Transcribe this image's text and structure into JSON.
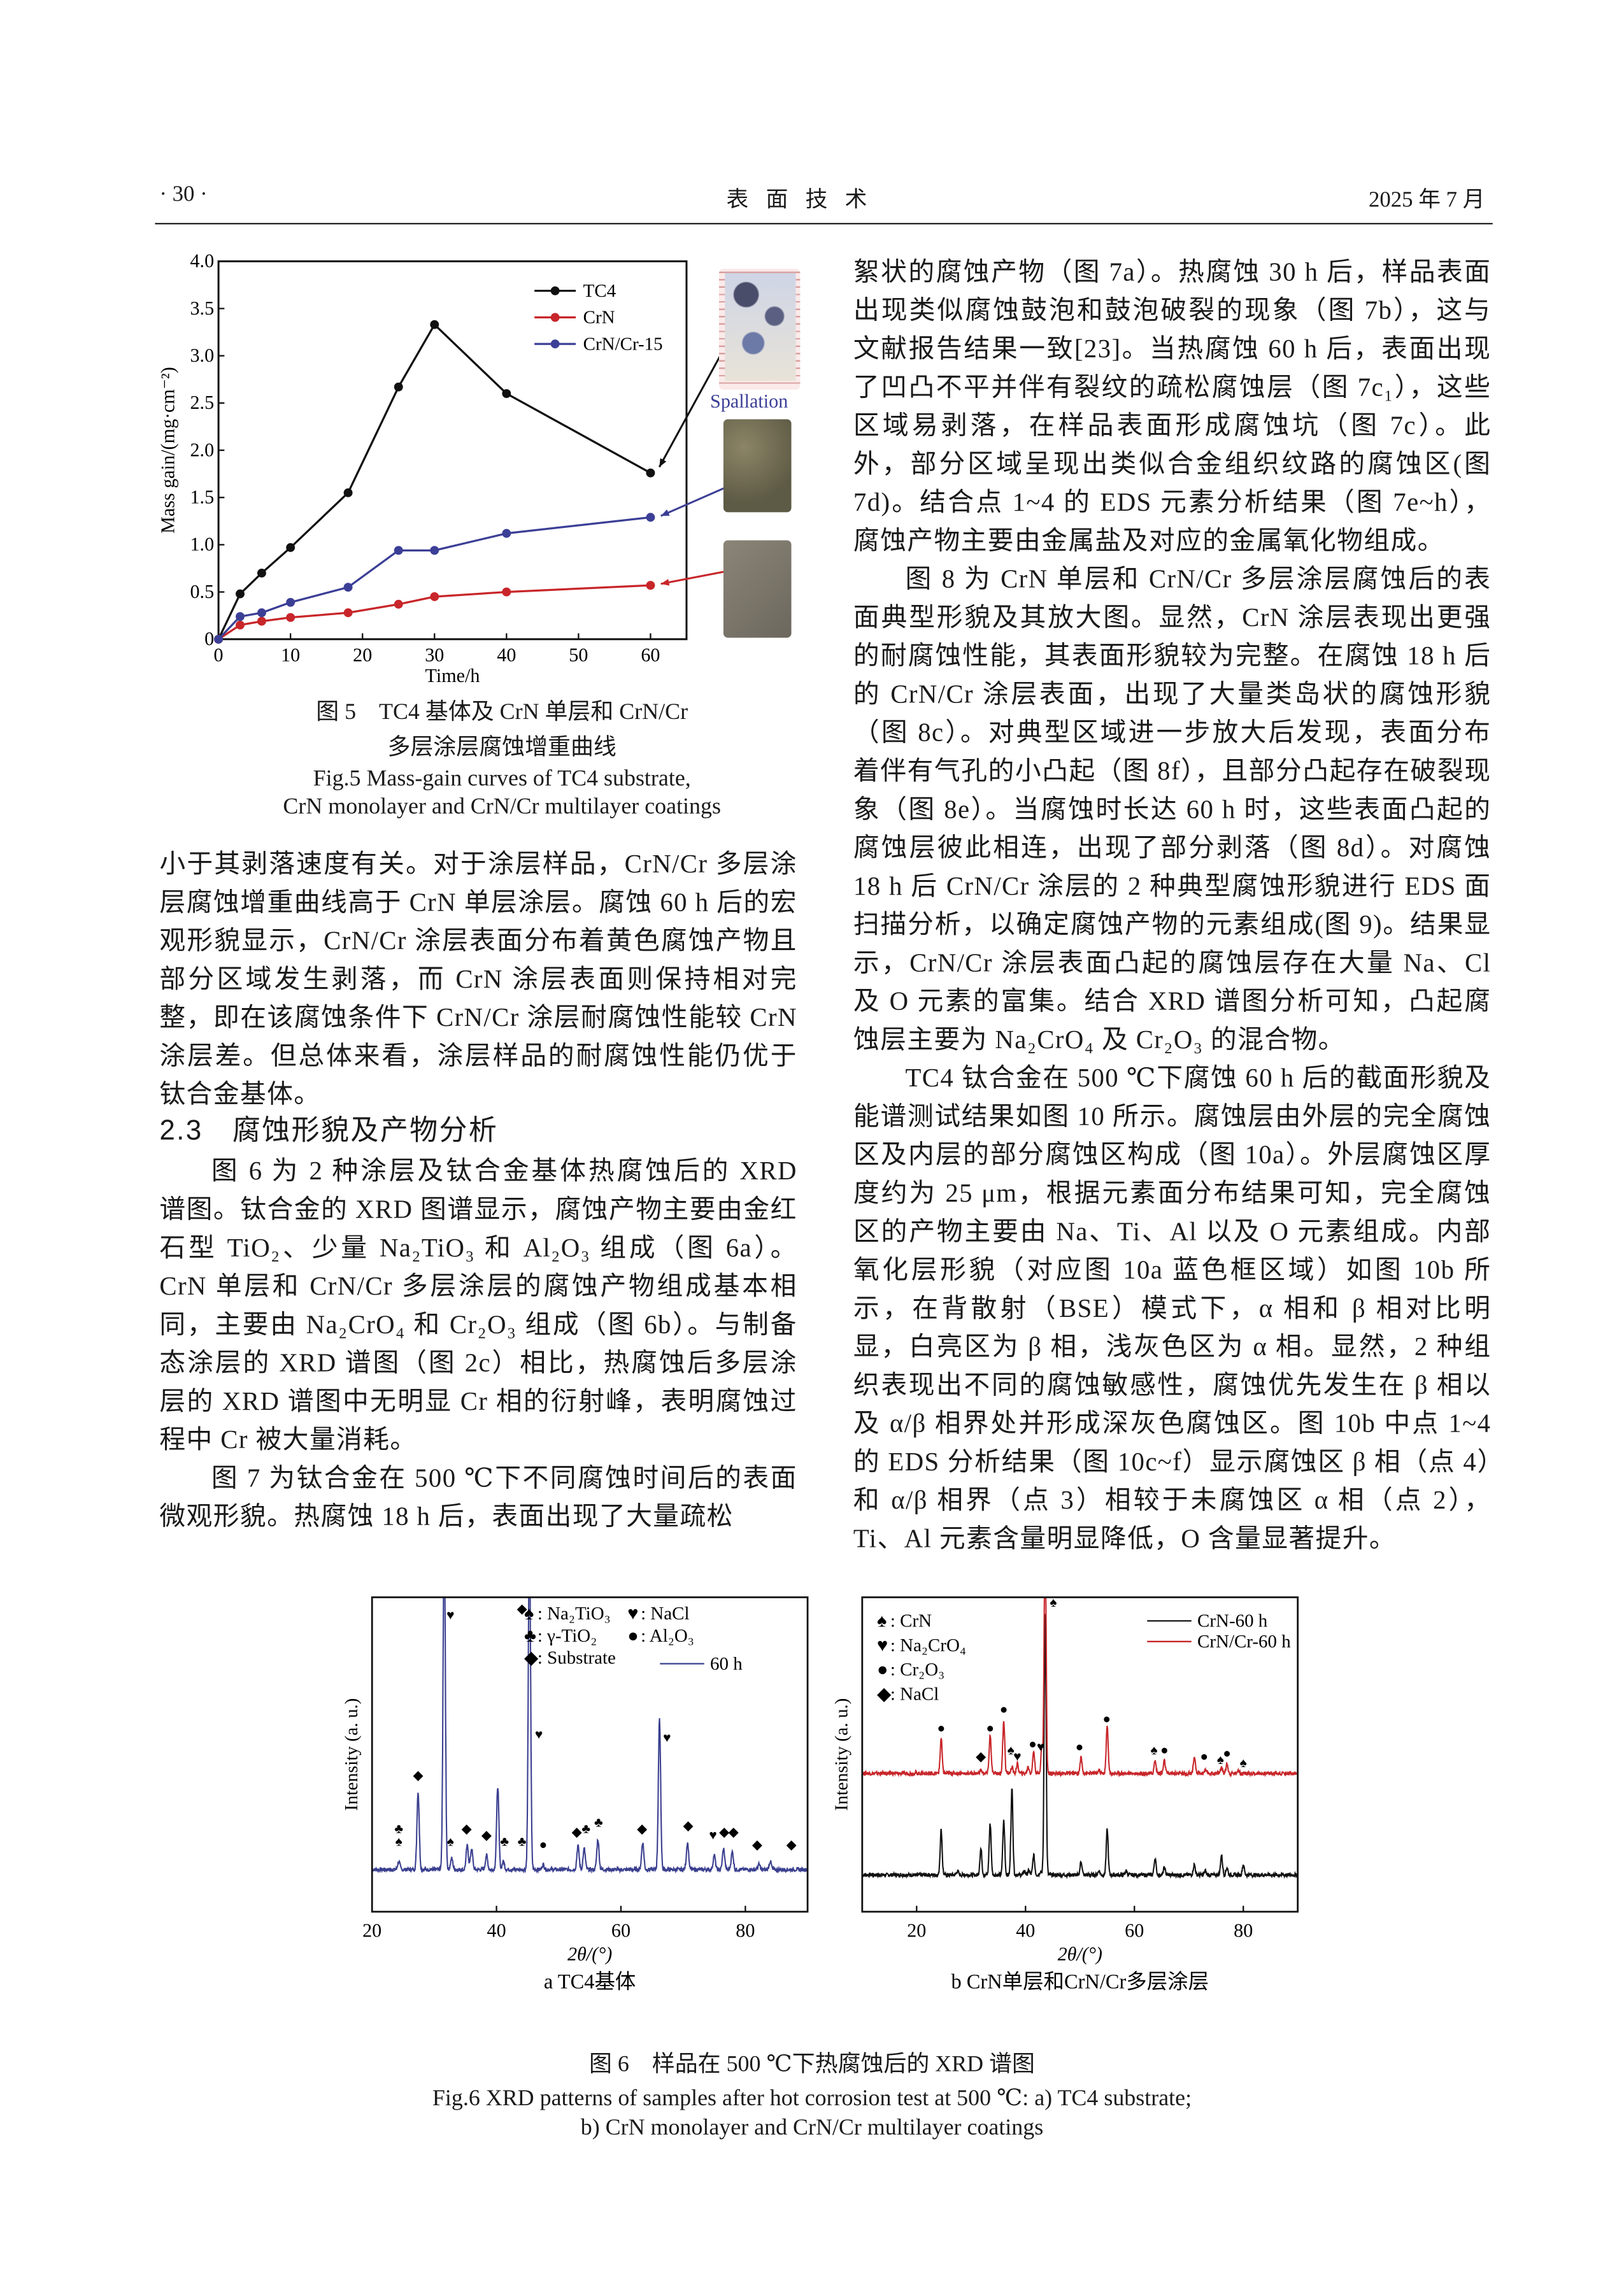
{
  "header": {
    "page_number": "· 30 ·",
    "journal": "表 面 技 术",
    "date": "2025 年 7 月"
  },
  "figure5": {
    "caption_cn_line1": "图 5　TC4 基体及 CrN 单层和 CrN/Cr",
    "caption_cn_line2": "多层涂层腐蚀增重曲线",
    "caption_en_line1": "Fig.5 Mass-gain curves of TC4 substrate,",
    "caption_en_line2": "CrN monolayer and CrN/Cr multilayer coatings",
    "annotation": "Spallation"
  },
  "chart_data": [
    {
      "id": "fig5",
      "type": "line",
      "xlabel": "Time/h",
      "ylabel": "Mass gain/(mg·cm⁻²)",
      "xlim": [
        0,
        65
      ],
      "ylim": [
        0,
        4.0
      ],
      "xticks": [
        0,
        10,
        20,
        30,
        40,
        50,
        60
      ],
      "yticks": [
        0,
        0.5,
        1.0,
        1.5,
        2.0,
        2.5,
        3.0,
        3.5,
        4.0
      ],
      "ytick_labels": [
        "0",
        "0.5",
        "1.0",
        "1.5",
        "2.0",
        "2.5",
        "3.0",
        "3.5",
        "4.0"
      ],
      "legend": "top-right",
      "x": [
        0,
        3,
        6,
        10,
        18,
        25,
        30,
        40,
        60
      ],
      "series": [
        {
          "name": "TC4",
          "color": "#111111",
          "values": [
            0,
            0.48,
            0.7,
            0.97,
            1.55,
            2.67,
            3.33,
            2.6,
            1.76
          ]
        },
        {
          "name": "CrN",
          "color": "#c8262a",
          "values": [
            0,
            0.15,
            0.19,
            0.23,
            0.28,
            0.37,
            0.45,
            0.5,
            0.57
          ]
        },
        {
          "name": "CrN/Cr-15",
          "color": "#3b3f96",
          "values": [
            0,
            0.24,
            0.28,
            0.39,
            0.55,
            0.94,
            0.94,
            1.12,
            1.29
          ]
        }
      ]
    },
    {
      "id": "fig6a",
      "type": "line",
      "xlabel": "2θ/(°)",
      "ylabel": "Intensity (a. u.)",
      "xlim": [
        20,
        90
      ],
      "xticks": [
        20,
        40,
        60,
        80
      ],
      "subcaption": "a  TC4基体",
      "legend": "top-right",
      "legend_items": [
        {
          "symbol": "♠",
          "label": "Na₂TiO₃"
        },
        {
          "symbol": "♥",
          "label": "NaCl"
        },
        {
          "symbol": "♣",
          "label": "γ-TiO₂"
        },
        {
          "symbol": "●",
          "label": "Al₂O₃"
        },
        {
          "symbol": "◆",
          "label": "Substrate"
        }
      ],
      "series": [
        {
          "name": "60 h",
          "color": "#3a3f8f",
          "baseline": 0.134,
          "peaks": [
            [
              24.3,
              0.16
            ],
            [
              27.4,
              0.38
            ],
            [
              31.6,
              1.2
            ],
            [
              32.8,
              0.17
            ],
            [
              35.3,
              0.21
            ],
            [
              36.0,
              0.2
            ],
            [
              38.4,
              0.18
            ],
            [
              40.2,
              0.4
            ],
            [
              41.1,
              0.16
            ],
            [
              45.3,
              1.2
            ],
            [
              47.5,
              0.15
            ],
            [
              53.1,
              0.21
            ],
            [
              54.1,
              0.2
            ],
            [
              56.3,
              0.23
            ],
            [
              63.5,
              0.22
            ],
            [
              66.2,
              0.61
            ],
            [
              70.7,
              0.22
            ],
            [
              75.0,
              0.18
            ],
            [
              76.5,
              0.2
            ],
            [
              77.9,
              0.19
            ],
            [
              82.2,
              0.15
            ],
            [
              84.0,
              0.16
            ]
          ]
        }
      ],
      "peak_markers": [
        {
          "symbol": "♣",
          "x": 24.3,
          "level": 0.25
        },
        {
          "symbol": "♠",
          "x": 24.3,
          "level": 0.21
        },
        {
          "symbol": "◆",
          "x": 27.4,
          "level": 0.42
        },
        {
          "symbol": "♥",
          "x": 32.6,
          "level": 0.93
        },
        {
          "symbol": "♠",
          "x": 32.6,
          "level": 0.21
        },
        {
          "symbol": "◆",
          "x": 35.2,
          "level": 0.25
        },
        {
          "symbol": "◆",
          "x": 38.4,
          "level": 0.23
        },
        {
          "symbol": "♣",
          "x": 41.3,
          "level": 0.21
        },
        {
          "symbol": "◆",
          "x": 44.1,
          "level": 0.95
        },
        {
          "symbol": "♣",
          "x": 44.1,
          "level": 0.21
        },
        {
          "symbol": "♥",
          "x": 46.8,
          "level": 0.55
        },
        {
          "symbol": "●",
          "x": 47.5,
          "level": 0.2
        },
        {
          "symbol": "◆",
          "x": 52.9,
          "level": 0.24
        },
        {
          "symbol": "♣",
          "x": 54.4,
          "level": 0.25
        },
        {
          "symbol": "♣",
          "x": 56.4,
          "level": 0.27
        },
        {
          "symbol": "◆",
          "x": 63.4,
          "level": 0.25
        },
        {
          "symbol": "♥",
          "x": 67.4,
          "level": 0.54
        },
        {
          "symbol": "◆",
          "x": 70.8,
          "level": 0.26
        },
        {
          "symbol": "♥",
          "x": 74.8,
          "level": 0.23
        },
        {
          "symbol": "◆",
          "x": 76.6,
          "level": 0.24
        },
        {
          "symbol": "◆",
          "x": 78.1,
          "level": 0.24
        },
        {
          "symbol": "◆",
          "x": 81.9,
          "level": 0.2
        },
        {
          "symbol": "◆",
          "x": 87.4,
          "level": 0.2
        }
      ]
    },
    {
      "id": "fig6b",
      "type": "line",
      "xlabel": "2θ/(°)",
      "ylabel": "Intensity (a. u.)",
      "xlim": [
        10,
        90
      ],
      "xticks": [
        20,
        40,
        60,
        80
      ],
      "subcaption": "b  CrN单层和CrN/Cr多层涂层",
      "legend": "top-right",
      "legend_items": [
        {
          "symbol": "♠",
          "label": "CrN"
        },
        {
          "symbol": "♥",
          "label": "Na₂CrO₄"
        },
        {
          "symbol": "●",
          "label": "Cr₂O₃"
        },
        {
          "symbol": "◆",
          "label": "NaCl"
        }
      ],
      "series": [
        {
          "name": "CrN-60 h",
          "color": "#111111",
          "baseline": 0.117,
          "peaks": [
            [
              24.5,
              0.26
            ],
            [
              27.5,
              0.13
            ],
            [
              31.8,
              0.2
            ],
            [
              33.5,
              0.28
            ],
            [
              36.0,
              0.29
            ],
            [
              37.5,
              0.39
            ],
            [
              39.8,
              0.13
            ],
            [
              40.6,
              0.13
            ],
            [
              41.5,
              0.18
            ],
            [
              42.8,
              0.13
            ],
            [
              43.6,
              0.95
            ],
            [
              50.2,
              0.16
            ],
            [
              53.5,
              0.13
            ],
            [
              55.0,
              0.26
            ],
            [
              58.5,
              0.13
            ],
            [
              63.8,
              0.17
            ],
            [
              65.5,
              0.14
            ],
            [
              71.0,
              0.15
            ],
            [
              73.0,
              0.13
            ],
            [
              76.0,
              0.18
            ],
            [
              77.0,
              0.14
            ],
            [
              80.0,
              0.15
            ]
          ]
        },
        {
          "name": "CrN/Cr-60 h",
          "color": "#c8262a",
          "baseline": 0.44,
          "peaks": [
            [
              24.5,
              0.55
            ],
            [
              31.8,
              0.45
            ],
            [
              33.5,
              0.56
            ],
            [
              36.0,
              0.61
            ],
            [
              37.5,
              0.46
            ],
            [
              38.5,
              0.47
            ],
            [
              40.5,
              0.46
            ],
            [
              41.5,
              0.51
            ],
            [
              43.0,
              0.52
            ],
            [
              43.6,
              1.2
            ],
            [
              50.2,
              0.49
            ],
            [
              53.5,
              0.45
            ],
            [
              55.0,
              0.59
            ],
            [
              63.8,
              0.48
            ],
            [
              65.5,
              0.48
            ],
            [
              71.0,
              0.49
            ],
            [
              73.0,
              0.45
            ],
            [
              76.0,
              0.46
            ],
            [
              77.0,
              0.47
            ],
            [
              79.0,
              0.45
            ]
          ]
        }
      ],
      "peak_markers": [
        {
          "symbol": "●",
          "x": 24.5,
          "level": 0.57
        },
        {
          "symbol": "◆",
          "x": 31.8,
          "level": 0.48
        },
        {
          "symbol": "●",
          "x": 33.5,
          "level": 0.57
        },
        {
          "symbol": "●",
          "x": 36.0,
          "level": 0.63
        },
        {
          "symbol": "♠",
          "x": 37.3,
          "level": 0.5
        },
        {
          "symbol": "♥",
          "x": 38.5,
          "level": 0.48
        },
        {
          "symbol": "●",
          "x": 41.3,
          "level": 0.52
        },
        {
          "symbol": "♥",
          "x": 42.8,
          "level": 0.51
        },
        {
          "symbol": "♠",
          "x": 45.1,
          "level": 0.97
        },
        {
          "symbol": "●",
          "x": 49.9,
          "level": 0.51
        },
        {
          "symbol": "●",
          "x": 54.9,
          "level": 0.6
        },
        {
          "symbol": "♠",
          "x": 63.6,
          "level": 0.5
        },
        {
          "symbol": "●",
          "x": 65.5,
          "level": 0.5
        },
        {
          "symbol": "●",
          "x": 72.8,
          "level": 0.48
        },
        {
          "symbol": "♠",
          "x": 75.8,
          "level": 0.47
        },
        {
          "symbol": "●",
          "x": 77.0,
          "level": 0.49
        },
        {
          "symbol": "♠",
          "x": 80.0,
          "level": 0.46
        }
      ]
    }
  ],
  "figure6": {
    "caption_cn": "图 6　样品在 500 ℃下热腐蚀后的 XRD 谱图",
    "caption_en_line1": "Fig.6 XRD patterns of samples after hot corrosion test at 500 ℃: a) TC4 substrate;",
    "caption_en_line2": "b) CrN monolayer and CrN/Cr multilayer coatings"
  },
  "left_column": {
    "p1": "小于其剥落速度有关。对于涂层样品，CrN/Cr 多层涂层腐蚀增重曲线高于 CrN 单层涂层。腐蚀 60 h 后的宏观形貌显示，CrN/Cr 涂层表面分布着黄色腐蚀产物且部分区域发生剥落，而 CrN 涂层表面则保持相对完整，即在该腐蚀条件下 CrN/Cr 涂层耐腐蚀性能较 CrN 涂层差。但总体来看，涂层样品的耐腐蚀性能仍优于钛合金基体。",
    "heading": "2.3　腐蚀形貌及产物分析",
    "p2": "图 6 为 2 种涂层及钛合金基体热腐蚀后的 XRD 谱图。钛合金的 XRD 图谱显示，腐蚀产物主要由金红石型 TiO₂、少量 Na₂TiO₃ 和 Al₂O₃ 组成（图 6a）。CrN 单层和 CrN/Cr 多层涂层的腐蚀产物组成基本相同，主要由 Na₂CrO₄ 和 Cr₂O₃ 组成（图 6b）。与制备态涂层的 XRD 谱图（图 2c）相比，热腐蚀后多层涂层的 XRD 谱图中无明显 Cr 相的衍射峰，表明腐蚀过程中 Cr 被大量消耗。",
    "p3": "图 7 为钛合金在 500 ℃下不同腐蚀时间后的表面微观形貌。热腐蚀 18 h 后，表面出现了大量疏松"
  },
  "right_column": {
    "p1": "絮状的腐蚀产物（图 7a）。热腐蚀 30 h 后，样品表面出现类似腐蚀鼓泡和鼓泡破裂的现象（图 7b），这与文献报告结果一致[23]。当热腐蚀 60 h 后，表面出现了凹凸不平并伴有裂纹的疏松腐蚀层（图 7c₁），这些区域易剥落，在样品表面形成腐蚀坑（图 7c）。此外，部分区域呈现出类似合金组织纹路的腐蚀区(图 7d)。结合点 1~4 的 EDS 元素分析结果（图 7e~h），腐蚀产物主要由金属盐及对应的金属氧化物组成。",
    "p2": "图 8 为 CrN 单层和 CrN/Cr 多层涂层腐蚀后的表面典型形貌及其放大图。显然，CrN 涂层表现出更强的耐腐蚀性能，其表面形貌较为完整。在腐蚀 18 h 后的 CrN/Cr 涂层表面，出现了大量类岛状的腐蚀形貌（图 8c）。对典型区域进一步放大后发现，表面分布着伴有气孔的小凸起（图 8f），且部分凸起存在破裂现象（图 8e）。当腐蚀时长达 60 h 时，这些表面凸起的腐蚀层彼此相连，出现了部分剥落（图 8d）。对腐蚀 18 h 后 CrN/Cr 涂层的 2 种典型腐蚀形貌进行 EDS 面扫描分析，以确定腐蚀产物的元素组成(图 9)。结果显示，CrN/Cr 涂层表面凸起的腐蚀层存在大量 Na、Cl 及 O 元素的富集。结合 XRD 谱图分析可知，凸起腐蚀层主要为 Na₂CrO₄ 及 Cr₂O₃ 的混合物。",
    "p3": "TC4 钛合金在 500 ℃下腐蚀 60 h 后的截面形貌及能谱测试结果如图 10 所示。腐蚀层由外层的完全腐蚀区及内层的部分腐蚀区构成（图 10a）。外层腐蚀区厚度约为 25 μm，根据元素面分布结果可知，完全腐蚀区的产物主要由 Na、Ti、Al 以及 O 元素组成。内部氧化层形貌（对应图 10a 蓝色框区域）如图 10b 所示，在背散射（BSE）模式下，α 相和 β 相对比明显，白亮区为 β 相，浅灰色区为 α 相。显然，2 种组织表现出不同的腐蚀敏感性，腐蚀优先发生在 β 相以及 α/β 相界处并形成深灰色腐蚀区。图 10b 中点 1~4 的 EDS 分析结果（图 10c~f）显示腐蚀区 β 相（点 4）和 α/β 相界（点 3）相较于未腐蚀区 α 相（点 2），Ti、Al 元素含量明显降低，O 含量显著提升。"
  }
}
